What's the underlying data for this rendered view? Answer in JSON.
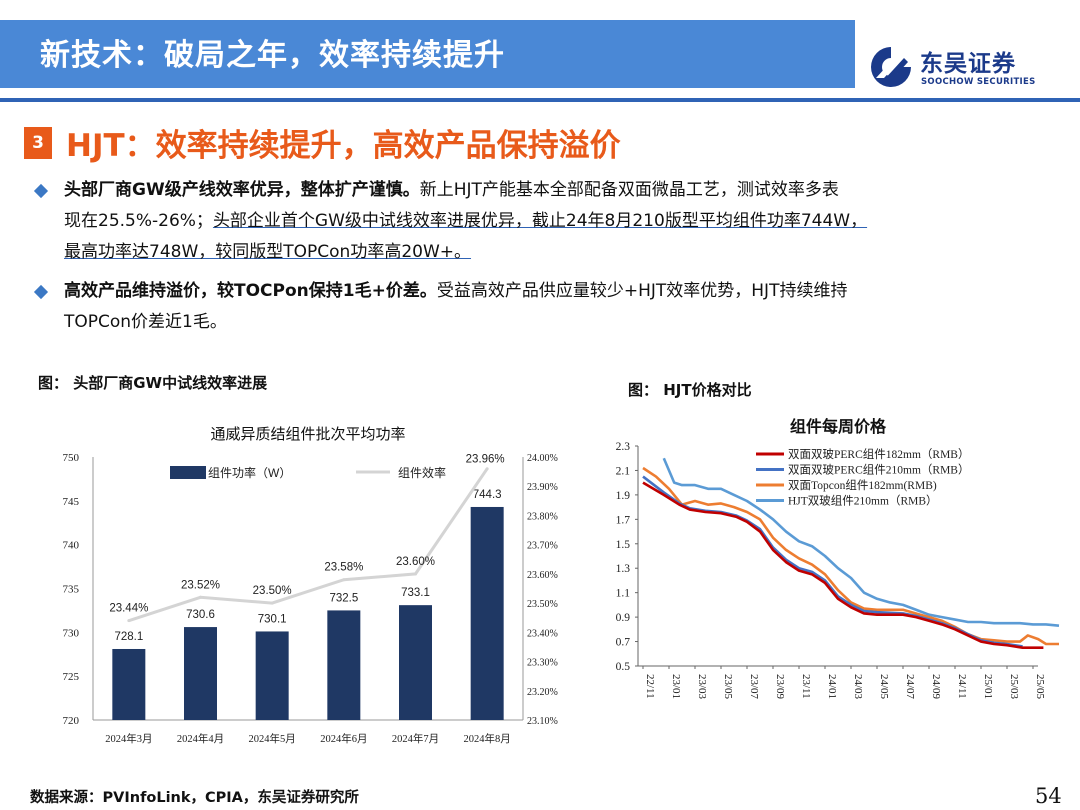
{
  "header": {
    "title": "新技术：破局之年，效率持续提升",
    "logo_cn": "东吴证券",
    "logo_en": "SOOCHOW SECURITIES",
    "band_color": "#4a88d6"
  },
  "section": {
    "number": "3",
    "title": "HJT：效率持续提升，高效产品保持溢价",
    "accent": "#e85a1a"
  },
  "bullets": [
    {
      "bold": "头部厂商GW级产线效率优异，整体扩产谨慎。",
      "text_line1_rest": "新上HJT产能基本全部配备双面微晶工艺，测试效率多表",
      "text_line2_a": "现在25.5%-26%；",
      "text_line2_underlined": "头部企业首个GW级中试线效率进展优异，截止24年8月210版型平均组件功率744W，",
      "text_line3_underlined": "最高功率达748W，较同版型TOPCon功率高20W+。"
    },
    {
      "bold": "高效产品维持溢价，较TOCPon保持1毛+价差。",
      "text_line1_rest": "受益高效产品供应量较少+HJT效率优势，HJT持续维持",
      "text_line2": "TOPCon价差近1毛。"
    }
  ],
  "figure_left_caption": "图：  头部厂商GW中试线效率进展",
  "figure_right_caption": "图：  HJT价格对比",
  "chart_data": [
    {
      "type": "bar",
      "title": "通威异质结组件批次平均功率",
      "categories": [
        "2024年3月",
        "2024年4月",
        "2024年5月",
        "2024年6月",
        "2024年7月",
        "2024年8月"
      ],
      "series": [
        {
          "name": "组件功率（W）",
          "type": "bar",
          "axis": "left",
          "values": [
            728.1,
            730.6,
            730.1,
            732.5,
            733.1,
            744.3
          ],
          "color": "#1f3864"
        },
        {
          "name": "组件效率",
          "type": "line",
          "axis": "right",
          "values": [
            23.44,
            23.52,
            23.5,
            23.58,
            23.6,
            23.96
          ],
          "labels": [
            "23.44%",
            "23.52%",
            "23.50%",
            "23.58%",
            "23.60%",
            "23.96%"
          ],
          "color": "#d9d9d9"
        }
      ],
      "ylim": [
        720,
        750
      ],
      "yticks": [
        "720",
        "725",
        "730",
        "735",
        "740",
        "745",
        "750"
      ],
      "y2lim": [
        23.1,
        24.0
      ],
      "y2ticks": [
        "23.10%",
        "23.20%",
        "23.30%",
        "23.40%",
        "23.50%",
        "23.60%",
        "23.70%",
        "23.80%",
        "23.90%",
        "24.00%"
      ],
      "bar_labels": [
        "728.1",
        "730.6",
        "730.1",
        "732.5",
        "733.1",
        "744.3"
      ],
      "legend": "top"
    },
    {
      "type": "line",
      "title": "组件每周价格",
      "x": [
        "22/11",
        "23/01",
        "23/03",
        "23/05",
        "23/07",
        "23/09",
        "23/11",
        "24/01",
        "24/03",
        "24/05",
        "24/07",
        "24/09",
        "24/11",
        "25/01",
        "25/03",
        "25/05"
      ],
      "ylim": [
        0.5,
        2.3
      ],
      "yticks": [
        "0.5",
        "0.7",
        "0.9",
        "1.1",
        "1.3",
        "1.5",
        "1.7",
        "1.9",
        "2.1",
        "2.3"
      ],
      "legend": "top-right",
      "series": [
        {
          "name": "双面双玻PERC组件182mm（RMB）",
          "color": "#c00000",
          "values": [
            [
              0,
              2.0
            ],
            [
              0.8,
              1.9
            ],
            [
              1.4,
              1.82
            ],
            [
              1.8,
              1.78
            ],
            [
              2.4,
              1.76
            ],
            [
              3,
              1.75
            ],
            [
              3.6,
              1.72
            ],
            [
              4,
              1.68
            ],
            [
              4.5,
              1.6
            ],
            [
              5,
              1.45
            ],
            [
              5.5,
              1.35
            ],
            [
              6,
              1.28
            ],
            [
              6.5,
              1.25
            ],
            [
              7,
              1.18
            ],
            [
              7.5,
              1.05
            ],
            [
              8,
              0.98
            ],
            [
              8.5,
              0.93
            ],
            [
              9,
              0.92
            ],
            [
              10,
              0.92
            ],
            [
              10.5,
              0.9
            ],
            [
              11,
              0.87
            ],
            [
              11.5,
              0.84
            ],
            [
              12,
              0.8
            ],
            [
              12.5,
              0.75
            ],
            [
              13,
              0.7
            ],
            [
              13.5,
              0.68
            ],
            [
              14,
              0.67
            ],
            [
              14.6,
              0.65
            ],
            [
              15,
              0.65
            ],
            [
              15.4,
              0.65
            ]
          ]
        },
        {
          "name": "双面双玻PERC组件210mm（RMB）",
          "color": "#4472c4",
          "values": [
            [
              0,
              2.05
            ],
            [
              0.8,
              1.92
            ],
            [
              1.4,
              1.83
            ],
            [
              1.8,
              1.79
            ],
            [
              2.4,
              1.77
            ],
            [
              3,
              1.76
            ],
            [
              3.6,
              1.73
            ],
            [
              4,
              1.69
            ],
            [
              4.5,
              1.62
            ],
            [
              5,
              1.47
            ],
            [
              5.5,
              1.37
            ],
            [
              6,
              1.3
            ],
            [
              6.5,
              1.27
            ],
            [
              7,
              1.2
            ],
            [
              7.5,
              1.07
            ],
            [
              8,
              1.0
            ],
            [
              8.5,
              0.95
            ],
            [
              9,
              0.94
            ],
            [
              10,
              0.93
            ],
            [
              10.5,
              0.91
            ],
            [
              11,
              0.88
            ],
            [
              11.5,
              0.85
            ],
            [
              12,
              0.81
            ],
            [
              12.5,
              0.76
            ],
            [
              13,
              0.71
            ],
            [
              13.5,
              0.69
            ],
            [
              14,
              0.68
            ],
            [
              14.6,
              0.66
            ]
          ]
        },
        {
          "name": "双面Topcon组件182mm(RMB)",
          "color": "#ed7d31",
          "values": [
            [
              0,
              2.12
            ],
            [
              0.5,
              2.05
            ],
            [
              1,
              1.95
            ],
            [
              1.5,
              1.82
            ],
            [
              2,
              1.85
            ],
            [
              2.5,
              1.82
            ],
            [
              3,
              1.83
            ],
            [
              3.5,
              1.8
            ],
            [
              4,
              1.76
            ],
            [
              4.5,
              1.7
            ],
            [
              5,
              1.55
            ],
            [
              5.5,
              1.45
            ],
            [
              6,
              1.38
            ],
            [
              6.5,
              1.33
            ],
            [
              7,
              1.25
            ],
            [
              7.5,
              1.12
            ],
            [
              8,
              1.02
            ],
            [
              8.5,
              0.97
            ],
            [
              9,
              0.96
            ],
            [
              10,
              0.96
            ],
            [
              10.5,
              0.93
            ],
            [
              11,
              0.9
            ],
            [
              11.5,
              0.87
            ],
            [
              12,
              0.82
            ],
            [
              12.5,
              0.76
            ],
            [
              13,
              0.72
            ],
            [
              13.5,
              0.71
            ],
            [
              14,
              0.7
            ],
            [
              14.5,
              0.7
            ],
            [
              14.8,
              0.75
            ],
            [
              15.2,
              0.72
            ],
            [
              15.5,
              0.68
            ],
            [
              16,
              0.68
            ]
          ]
        },
        {
          "name": "HJT双玻组件210mm（RMB）",
          "color": "#5b9bd5",
          "values": [
            [
              0.8,
              2.2
            ],
            [
              1.2,
              2.0
            ],
            [
              1.5,
              1.98
            ],
            [
              2,
              1.98
            ],
            [
              2.5,
              1.95
            ],
            [
              3,
              1.95
            ],
            [
              3.5,
              1.9
            ],
            [
              4,
              1.85
            ],
            [
              4.5,
              1.78
            ],
            [
              5,
              1.7
            ],
            [
              5.5,
              1.6
            ],
            [
              6,
              1.52
            ],
            [
              6.5,
              1.48
            ],
            [
              7,
              1.4
            ],
            [
              7.5,
              1.3
            ],
            [
              8,
              1.22
            ],
            [
              8.5,
              1.1
            ],
            [
              9,
              1.05
            ],
            [
              9.5,
              1.02
            ],
            [
              10,
              1.0
            ],
            [
              10.5,
              0.96
            ],
            [
              11,
              0.92
            ],
            [
              11.5,
              0.9
            ],
            [
              12,
              0.88
            ],
            [
              12.5,
              0.86
            ],
            [
              13,
              0.86
            ],
            [
              13.5,
              0.85
            ],
            [
              14,
              0.85
            ],
            [
              14.5,
              0.85
            ],
            [
              15,
              0.84
            ],
            [
              15.5,
              0.84
            ],
            [
              16,
              0.83
            ]
          ]
        }
      ]
    }
  ],
  "footer": {
    "source": "数据来源：PVInfoLink，CPIA，东吴证券研究所",
    "page": "54"
  }
}
